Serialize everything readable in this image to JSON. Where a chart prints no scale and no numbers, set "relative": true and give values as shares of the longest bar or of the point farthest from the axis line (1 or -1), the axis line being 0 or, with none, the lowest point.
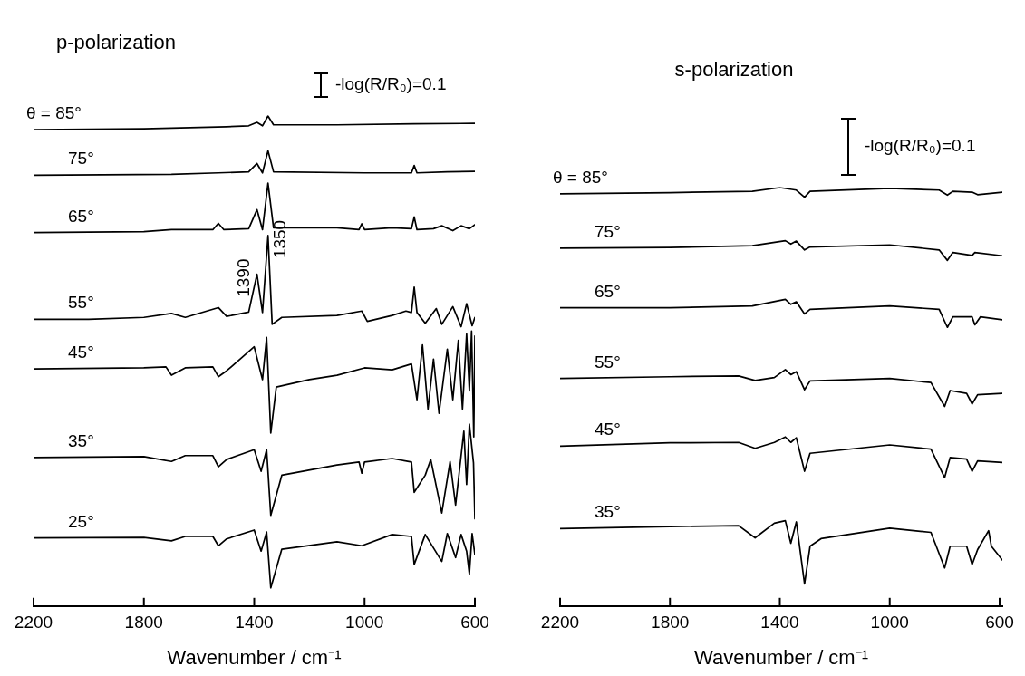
{
  "chart_data": [
    {
      "type": "line",
      "title": "p-polarization",
      "xlabel": "Wavenumber / cm⁻¹",
      "xlim": [
        2200,
        600
      ],
      "xticks": [
        2200,
        1800,
        1400,
        1000,
        600
      ],
      "relative": true,
      "legend": false,
      "marker": "none",
      "annotations": [
        "-log(R/R₀)=0.1",
        {
          "text": "1390",
          "x": 1390,
          "y": 0.677
        },
        {
          "text": "1350",
          "x": 1350,
          "y": 0.756
        }
      ],
      "series": [
        {
          "name": "θ = 85°",
          "color": "#000000",
          "x": [
            2200,
            1800,
            1500,
            1420,
            1390,
            1370,
            1350,
            1330,
            1100,
            820,
            600
          ],
          "values": [
            0.972,
            0.974,
            0.978,
            0.98,
            0.987,
            0.98,
            1.0,
            0.982,
            0.982,
            0.984,
            0.985
          ]
        },
        {
          "name": "75°",
          "color": "#000000",
          "x": [
            2200,
            1700,
            1530,
            1420,
            1390,
            1370,
            1350,
            1330,
            1000,
            830,
            820,
            810,
            700,
            600
          ],
          "values": [
            0.879,
            0.881,
            0.884,
            0.886,
            0.903,
            0.884,
            0.929,
            0.886,
            0.884,
            0.884,
            0.899,
            0.884,
            0.886,
            0.887
          ]
        },
        {
          "name": "65°",
          "color": "#000000",
          "x": [
            2200,
            1800,
            1700,
            1550,
            1530,
            1510,
            1420,
            1390,
            1370,
            1350,
            1330,
            1100,
            1020,
            1010,
            1000,
            900,
            830,
            820,
            810,
            750,
            720,
            680,
            650,
            620,
            600
          ],
          "values": [
            0.762,
            0.764,
            0.768,
            0.768,
            0.781,
            0.768,
            0.77,
            0.809,
            0.768,
            0.863,
            0.772,
            0.772,
            0.768,
            0.78,
            0.768,
            0.772,
            0.77,
            0.794,
            0.768,
            0.77,
            0.776,
            0.766,
            0.776,
            0.77,
            0.778
          ]
        },
        {
          "name": "55°",
          "color": "#000000",
          "x": [
            2200,
            2000,
            1800,
            1700,
            1650,
            1530,
            1500,
            1420,
            1390,
            1370,
            1350,
            1335,
            1300,
            1100,
            1010,
            990,
            900,
            850,
            830,
            820,
            810,
            780,
            740,
            720,
            680,
            650,
            630,
            610,
            600
          ],
          "values": [
            0.585,
            0.585,
            0.589,
            0.597,
            0.589,
            0.609,
            0.591,
            0.6,
            0.677,
            0.599,
            0.756,
            0.575,
            0.589,
            0.593,
            0.602,
            0.581,
            0.593,
            0.602,
            0.599,
            0.651,
            0.599,
            0.577,
            0.607,
            0.575,
            0.611,
            0.57,
            0.617,
            0.572,
            0.589
          ]
        },
        {
          "name": "45°",
          "color": "#000000",
          "x": [
            2200,
            1800,
            1720,
            1700,
            1650,
            1550,
            1530,
            1500,
            1400,
            1370,
            1355,
            1340,
            1320,
            1200,
            1100,
            1000,
            900,
            830,
            810,
            790,
            770,
            750,
            730,
            700,
            680,
            660,
            645,
            630,
            620,
            612,
            604,
            600
          ],
          "values": [
            0.484,
            0.486,
            0.488,
            0.471,
            0.486,
            0.488,
            0.468,
            0.48,
            0.529,
            0.462,
            0.548,
            0.353,
            0.447,
            0.462,
            0.471,
            0.486,
            0.482,
            0.494,
            0.421,
            0.533,
            0.402,
            0.504,
            0.393,
            0.524,
            0.421,
            0.542,
            0.402,
            0.555,
            0.439,
            0.561,
            0.345,
            0.551
          ]
        },
        {
          "name": "35°",
          "color": "#000000",
          "x": [
            2200,
            1800,
            1700,
            1650,
            1550,
            1530,
            1500,
            1400,
            1375,
            1355,
            1340,
            1300,
            1100,
            1020,
            1010,
            1000,
            900,
            830,
            820,
            780,
            760,
            720,
            690,
            670,
            640,
            630,
            620,
            605,
            600
          ],
          "values": [
            0.303,
            0.305,
            0.295,
            0.307,
            0.307,
            0.284,
            0.299,
            0.319,
            0.275,
            0.319,
            0.185,
            0.267,
            0.288,
            0.294,
            0.271,
            0.294,
            0.301,
            0.294,
            0.232,
            0.267,
            0.299,
            0.19,
            0.295,
            0.206,
            0.357,
            0.248,
            0.371,
            0.292,
            0.178
          ]
        },
        {
          "name": "25°",
          "color": "#000000",
          "x": [
            2200,
            1800,
            1700,
            1650,
            1550,
            1530,
            1500,
            1400,
            1375,
            1355,
            1340,
            1300,
            1100,
            1010,
            900,
            830,
            820,
            780,
            720,
            700,
            670,
            650,
            630,
            620,
            610,
            600
          ],
          "values": [
            0.139,
            0.14,
            0.133,
            0.142,
            0.142,
            0.123,
            0.137,
            0.155,
            0.112,
            0.151,
            0.037,
            0.116,
            0.131,
            0.123,
            0.146,
            0.142,
            0.085,
            0.146,
            0.091,
            0.148,
            0.099,
            0.146,
            0.112,
            0.065,
            0.148,
            0.105
          ]
        }
      ]
    },
    {
      "type": "line",
      "title": "s-polarization",
      "xlabel": "Wavenumber / cm⁻¹",
      "xlim": [
        2200,
        590
      ],
      "xticks": [
        2200,
        1800,
        1400,
        1000,
        600
      ],
      "relative": true,
      "legend": false,
      "marker": "none",
      "annotations": [
        "-log(R/R₀)=0.1"
      ],
      "series": [
        {
          "name": "θ = 85°",
          "color": "#000000",
          "x": [
            2200,
            1800,
            1500,
            1400,
            1340,
            1310,
            1290,
            1000,
            820,
            790,
            770,
            700,
            680,
            590
          ],
          "values": [
            0.985,
            0.988,
            0.991,
            1.0,
            0.994,
            0.977,
            0.991,
            0.998,
            0.994,
            0.982,
            0.991,
            0.989,
            0.983,
            0.989
          ]
        },
        {
          "name": "75°",
          "color": "#000000",
          "x": [
            2200,
            1800,
            1500,
            1380,
            1360,
            1340,
            1310,
            1290,
            1000,
            820,
            790,
            770,
            700,
            690,
            590
          ],
          "values": [
            0.855,
            0.857,
            0.861,
            0.873,
            0.865,
            0.872,
            0.851,
            0.858,
            0.863,
            0.851,
            0.826,
            0.845,
            0.838,
            0.845,
            0.837
          ]
        },
        {
          "name": "65°",
          "color": "#000000",
          "x": [
            2200,
            1800,
            1500,
            1380,
            1360,
            1340,
            1310,
            1290,
            1000,
            820,
            790,
            770,
            700,
            690,
            670,
            590
          ],
          "values": [
            0.713,
            0.713,
            0.717,
            0.733,
            0.721,
            0.727,
            0.698,
            0.709,
            0.717,
            0.709,
            0.666,
            0.691,
            0.691,
            0.672,
            0.691,
            0.684
          ]
        },
        {
          "name": "55°",
          "color": "#000000",
          "x": [
            2200,
            1800,
            1550,
            1490,
            1420,
            1380,
            1360,
            1340,
            1310,
            1290,
            1000,
            850,
            800,
            780,
            720,
            700,
            680,
            590
          ],
          "values": [
            0.544,
            0.548,
            0.55,
            0.539,
            0.546,
            0.565,
            0.553,
            0.56,
            0.517,
            0.538,
            0.544,
            0.534,
            0.477,
            0.515,
            0.508,
            0.483,
            0.505,
            0.508
          ]
        },
        {
          "name": "45°",
          "color": "#000000",
          "x": [
            2200,
            1800,
            1550,
            1490,
            1420,
            1380,
            1360,
            1340,
            1310,
            1290,
            1000,
            850,
            800,
            780,
            720,
            700,
            680,
            590
          ],
          "values": [
            0.382,
            0.39,
            0.391,
            0.377,
            0.391,
            0.404,
            0.391,
            0.402,
            0.322,
            0.365,
            0.385,
            0.375,
            0.307,
            0.355,
            0.351,
            0.322,
            0.347,
            0.343
          ]
        },
        {
          "name": "35°",
          "color": "#000000",
          "x": [
            2200,
            1800,
            1550,
            1490,
            1420,
            1380,
            1360,
            1340,
            1310,
            1290,
            1250,
            1000,
            850,
            800,
            780,
            720,
            700,
            680,
            640,
            630,
            590
          ],
          "values": [
            0.185,
            0.19,
            0.192,
            0.163,
            0.198,
            0.204,
            0.15,
            0.201,
            0.053,
            0.143,
            0.161,
            0.186,
            0.176,
            0.091,
            0.143,
            0.143,
            0.099,
            0.135,
            0.18,
            0.143,
            0.11
          ]
        }
      ]
    }
  ]
}
